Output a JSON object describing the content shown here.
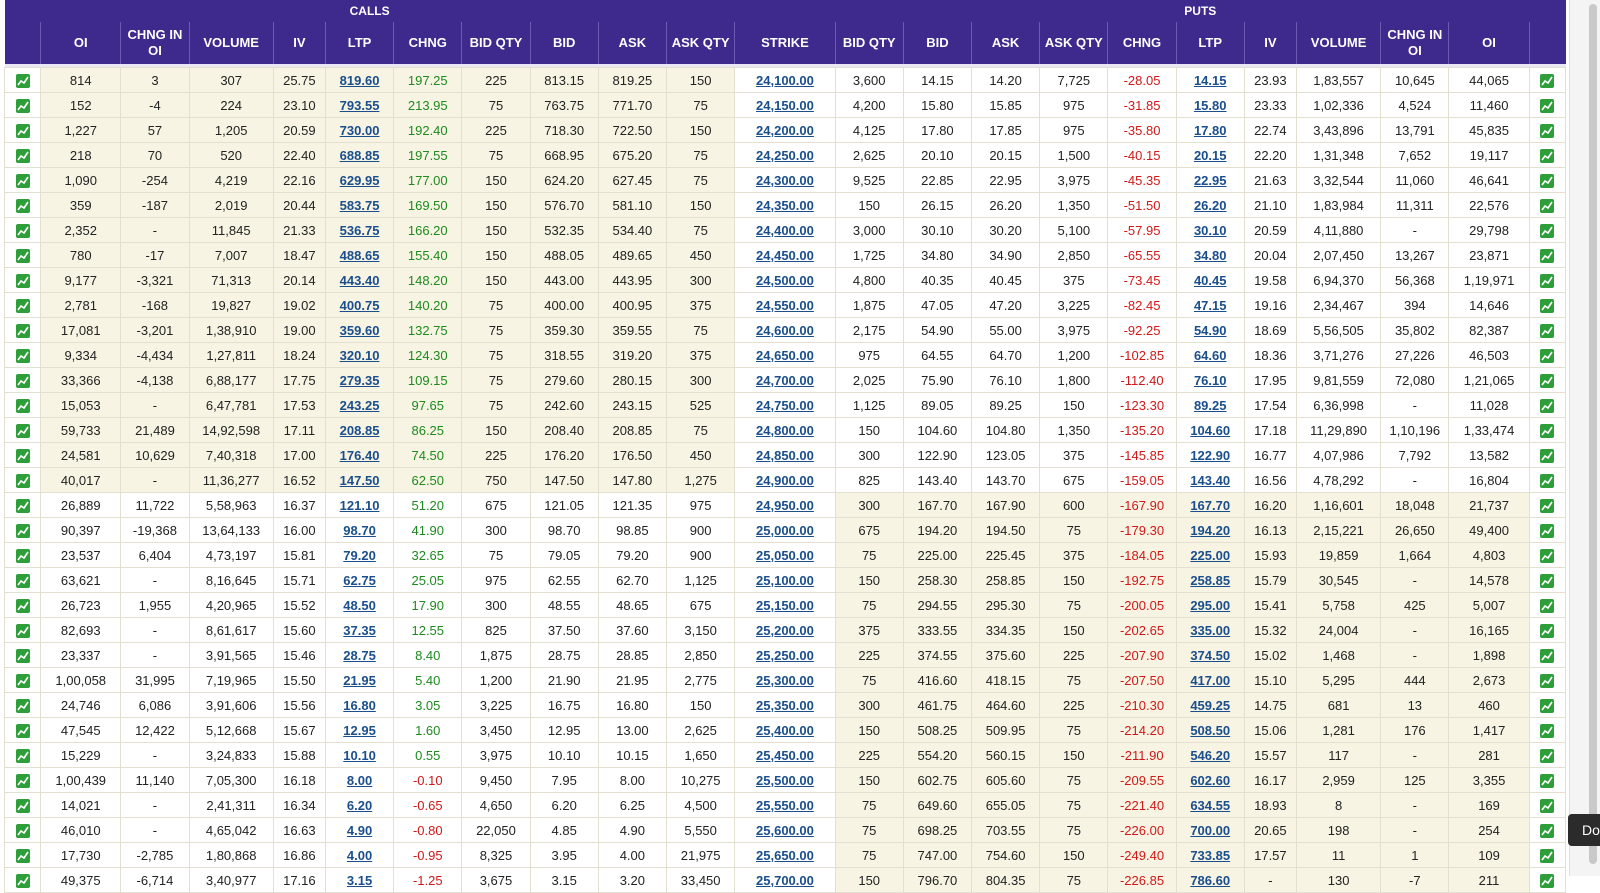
{
  "groups": {
    "calls": "CALLS",
    "puts": "PUTS"
  },
  "columns": {
    "call": [
      "OI",
      "CHNG IN OI",
      "VOLUME",
      "IV",
      "LTP",
      "CHNG",
      "BID QTY",
      "BID",
      "ASK",
      "ASK QTY"
    ],
    "strike": "STRIKE",
    "put": [
      "BID QTY",
      "BID",
      "ASK",
      "ASK QTY",
      "CHNG",
      "LTP",
      "IV",
      "VOLUME",
      "CHNG IN OI",
      "OI"
    ]
  },
  "corner_tab": "Do",
  "rows": [
    {
      "c": [
        "814",
        "3",
        "307",
        "25.75",
        "819.60",
        "197.25",
        "225",
        "813.15",
        "819.25",
        "150"
      ],
      "s": "24,100.00",
      "p": [
        "3,600",
        "14.15",
        "14.20",
        "7,725",
        "-28.05",
        "14.15",
        "23.93",
        "1,83,557",
        "10,645",
        "44,065"
      ]
    },
    {
      "c": [
        "152",
        "-4",
        "224",
        "23.10",
        "793.55",
        "213.95",
        "75",
        "763.75",
        "771.70",
        "75"
      ],
      "s": "24,150.00",
      "p": [
        "4,200",
        "15.80",
        "15.85",
        "975",
        "-31.85",
        "15.80",
        "23.33",
        "1,02,336",
        "4,524",
        "11,460"
      ]
    },
    {
      "c": [
        "1,227",
        "57",
        "1,205",
        "20.59",
        "730.00",
        "192.40",
        "225",
        "718.30",
        "722.50",
        "150"
      ],
      "s": "24,200.00",
      "p": [
        "4,125",
        "17.80",
        "17.85",
        "975",
        "-35.80",
        "17.80",
        "22.74",
        "3,43,896",
        "13,791",
        "45,835"
      ]
    },
    {
      "c": [
        "218",
        "70",
        "520",
        "22.40",
        "688.85",
        "197.55",
        "75",
        "668.95",
        "675.20",
        "75"
      ],
      "s": "24,250.00",
      "p": [
        "2,625",
        "20.10",
        "20.15",
        "1,500",
        "-40.15",
        "20.15",
        "22.20",
        "1,31,348",
        "7,652",
        "19,117"
      ]
    },
    {
      "c": [
        "1,090",
        "-254",
        "4,219",
        "22.16",
        "629.95",
        "177.00",
        "150",
        "624.20",
        "627.45",
        "75"
      ],
      "s": "24,300.00",
      "p": [
        "9,525",
        "22.85",
        "22.95",
        "3,975",
        "-45.35",
        "22.95",
        "21.63",
        "3,32,544",
        "11,060",
        "46,641"
      ]
    },
    {
      "c": [
        "359",
        "-187",
        "2,019",
        "20.44",
        "583.75",
        "169.50",
        "150",
        "576.70",
        "581.10",
        "150"
      ],
      "s": "24,350.00",
      "p": [
        "150",
        "26.15",
        "26.20",
        "1,350",
        "-51.50",
        "26.20",
        "21.10",
        "1,83,984",
        "11,311",
        "22,576"
      ]
    },
    {
      "c": [
        "2,352",
        "-",
        "11,845",
        "21.33",
        "536.75",
        "166.20",
        "150",
        "532.35",
        "534.40",
        "75"
      ],
      "s": "24,400.00",
      "p": [
        "3,000",
        "30.10",
        "30.20",
        "5,100",
        "-57.95",
        "30.10",
        "20.59",
        "4,11,880",
        "-",
        "29,798"
      ]
    },
    {
      "c": [
        "780",
        "-17",
        "7,007",
        "18.47",
        "488.65",
        "155.40",
        "150",
        "488.05",
        "489.65",
        "450"
      ],
      "s": "24,450.00",
      "p": [
        "1,725",
        "34.80",
        "34.90",
        "2,850",
        "-65.55",
        "34.80",
        "20.04",
        "2,07,450",
        "13,267",
        "23,871"
      ]
    },
    {
      "c": [
        "9,177",
        "-3,321",
        "71,313",
        "20.14",
        "443.40",
        "148.20",
        "150",
        "443.00",
        "443.95",
        "300"
      ],
      "s": "24,500.00",
      "p": [
        "4,800",
        "40.35",
        "40.45",
        "375",
        "-73.45",
        "40.45",
        "19.58",
        "6,94,370",
        "56,368",
        "1,19,971"
      ]
    },
    {
      "c": [
        "2,781",
        "-168",
        "19,827",
        "19.02",
        "400.75",
        "140.20",
        "75",
        "400.00",
        "400.95",
        "375"
      ],
      "s": "24,550.00",
      "p": [
        "1,875",
        "47.05",
        "47.20",
        "3,225",
        "-82.45",
        "47.15",
        "19.16",
        "2,34,467",
        "394",
        "14,646"
      ]
    },
    {
      "c": [
        "17,081",
        "-3,201",
        "1,38,910",
        "19.00",
        "359.60",
        "132.75",
        "75",
        "359.30",
        "359.55",
        "75"
      ],
      "s": "24,600.00",
      "p": [
        "2,175",
        "54.90",
        "55.00",
        "3,975",
        "-92.25",
        "54.90",
        "18.69",
        "5,56,505",
        "35,802",
        "82,387"
      ]
    },
    {
      "c": [
        "9,334",
        "-4,434",
        "1,27,811",
        "18.24",
        "320.10",
        "124.30",
        "75",
        "318.55",
        "319.20",
        "375"
      ],
      "s": "24,650.00",
      "p": [
        "975",
        "64.55",
        "64.70",
        "1,200",
        "-102.85",
        "64.60",
        "18.36",
        "3,71,276",
        "27,226",
        "46,503"
      ]
    },
    {
      "c": [
        "33,366",
        "-4,138",
        "6,88,177",
        "17.75",
        "279.35",
        "109.15",
        "75",
        "279.60",
        "280.15",
        "300"
      ],
      "s": "24,700.00",
      "p": [
        "2,025",
        "75.90",
        "76.10",
        "1,800",
        "-112.40",
        "76.10",
        "17.95",
        "9,81,559",
        "72,080",
        "1,21,065"
      ]
    },
    {
      "c": [
        "15,053",
        "-",
        "6,47,781",
        "17.53",
        "243.25",
        "97.65",
        "75",
        "242.60",
        "243.15",
        "525"
      ],
      "s": "24,750.00",
      "p": [
        "1,125",
        "89.05",
        "89.25",
        "150",
        "-123.30",
        "89.25",
        "17.54",
        "6,36,998",
        "-",
        "11,028"
      ]
    },
    {
      "c": [
        "59,733",
        "21,489",
        "14,92,598",
        "17.11",
        "208.85",
        "86.25",
        "150",
        "208.40",
        "208.85",
        "75"
      ],
      "s": "24,800.00",
      "p": [
        "150",
        "104.60",
        "104.80",
        "1,350",
        "-135.20",
        "104.60",
        "17.18",
        "11,29,890",
        "1,10,196",
        "1,33,474"
      ]
    },
    {
      "c": [
        "24,581",
        "10,629",
        "7,40,318",
        "17.00",
        "176.40",
        "74.50",
        "225",
        "176.20",
        "176.50",
        "450"
      ],
      "s": "24,850.00",
      "p": [
        "300",
        "122.90",
        "123.05",
        "375",
        "-145.85",
        "122.90",
        "16.77",
        "4,07,986",
        "7,792",
        "13,582"
      ]
    },
    {
      "c": [
        "40,017",
        "-",
        "11,36,277",
        "16.52",
        "147.50",
        "62.50",
        "750",
        "147.50",
        "147.80",
        "1,275"
      ],
      "s": "24,900.00",
      "p": [
        "825",
        "143.40",
        "143.70",
        "675",
        "-159.05",
        "143.40",
        "16.56",
        "4,78,292",
        "-",
        "16,804"
      ]
    },
    {
      "c": [
        "26,889",
        "11,722",
        "5,58,963",
        "16.37",
        "121.10",
        "51.20",
        "675",
        "121.05",
        "121.35",
        "975"
      ],
      "s": "24,950.00",
      "p": [
        "300",
        "167.70",
        "167.90",
        "600",
        "-167.90",
        "167.70",
        "16.20",
        "1,16,601",
        "18,048",
        "21,737"
      ]
    },
    {
      "c": [
        "90,397",
        "-19,368",
        "13,64,133",
        "16.00",
        "98.70",
        "41.90",
        "300",
        "98.70",
        "98.85",
        "900"
      ],
      "s": "25,000.00",
      "p": [
        "675",
        "194.20",
        "194.50",
        "75",
        "-179.30",
        "194.20",
        "16.13",
        "2,15,221",
        "26,650",
        "49,400"
      ]
    },
    {
      "c": [
        "23,537",
        "6,404",
        "4,73,197",
        "15.81",
        "79.20",
        "32.65",
        "75",
        "79.05",
        "79.20",
        "900"
      ],
      "s": "25,050.00",
      "p": [
        "75",
        "225.00",
        "225.45",
        "375",
        "-184.05",
        "225.00",
        "15.93",
        "19,859",
        "1,664",
        "4,803"
      ]
    },
    {
      "c": [
        "63,621",
        "-",
        "8,16,645",
        "15.71",
        "62.75",
        "25.05",
        "975",
        "62.55",
        "62.70",
        "1,125"
      ],
      "s": "25,100.00",
      "p": [
        "150",
        "258.30",
        "258.85",
        "150",
        "-192.75",
        "258.85",
        "15.79",
        "30,545",
        "-",
        "14,578"
      ]
    },
    {
      "c": [
        "26,723",
        "1,955",
        "4,20,965",
        "15.52",
        "48.50",
        "17.90",
        "300",
        "48.55",
        "48.65",
        "675"
      ],
      "s": "25,150.00",
      "p": [
        "75",
        "294.55",
        "295.30",
        "75",
        "-200.05",
        "295.00",
        "15.41",
        "5,758",
        "425",
        "5,007"
      ]
    },
    {
      "c": [
        "82,693",
        "-",
        "8,61,617",
        "15.60",
        "37.35",
        "12.55",
        "825",
        "37.50",
        "37.60",
        "3,150"
      ],
      "s": "25,200.00",
      "p": [
        "375",
        "333.55",
        "334.35",
        "150",
        "-202.65",
        "335.00",
        "15.32",
        "24,004",
        "-",
        "16,165"
      ]
    },
    {
      "c": [
        "23,337",
        "-",
        "3,91,565",
        "15.46",
        "28.75",
        "8.40",
        "1,875",
        "28.75",
        "28.85",
        "2,850"
      ],
      "s": "25,250.00",
      "p": [
        "225",
        "374.55",
        "375.60",
        "225",
        "-207.90",
        "374.50",
        "15.02",
        "1,468",
        "-",
        "1,898"
      ]
    },
    {
      "c": [
        "1,00,058",
        "31,995",
        "7,19,965",
        "15.50",
        "21.95",
        "5.40",
        "1,200",
        "21.90",
        "21.95",
        "2,775"
      ],
      "s": "25,300.00",
      "p": [
        "75",
        "416.60",
        "418.15",
        "75",
        "-207.50",
        "417.00",
        "15.10",
        "5,295",
        "444",
        "2,673"
      ]
    },
    {
      "c": [
        "24,746",
        "6,086",
        "3,91,606",
        "15.56",
        "16.80",
        "3.05",
        "3,225",
        "16.75",
        "16.80",
        "150"
      ],
      "s": "25,350.00",
      "p": [
        "300",
        "461.75",
        "464.60",
        "225",
        "-210.30",
        "459.25",
        "14.75",
        "681",
        "13",
        "460"
      ]
    },
    {
      "c": [
        "47,545",
        "12,422",
        "5,12,668",
        "15.67",
        "12.95",
        "1.60",
        "3,450",
        "12.95",
        "13.00",
        "2,625"
      ],
      "s": "25,400.00",
      "p": [
        "150",
        "508.25",
        "509.95",
        "75",
        "-214.20",
        "508.50",
        "15.06",
        "1,281",
        "176",
        "1,417"
      ]
    },
    {
      "c": [
        "15,229",
        "-",
        "3,24,833",
        "15.88",
        "10.10",
        "0.55",
        "3,975",
        "10.10",
        "10.15",
        "1,650"
      ],
      "s": "25,450.00",
      "p": [
        "225",
        "554.20",
        "560.15",
        "150",
        "-211.90",
        "546.20",
        "15.57",
        "117",
        "-",
        "281"
      ]
    },
    {
      "c": [
        "1,00,439",
        "11,140",
        "7,05,300",
        "16.18",
        "8.00",
        "-0.10",
        "9,450",
        "7.95",
        "8.00",
        "10,275"
      ],
      "s": "25,500.00",
      "p": [
        "150",
        "602.75",
        "605.60",
        "75",
        "-209.55",
        "602.60",
        "16.17",
        "2,959",
        "125",
        "3,355"
      ]
    },
    {
      "c": [
        "14,021",
        "-",
        "2,41,311",
        "16.34",
        "6.20",
        "-0.65",
        "4,650",
        "6.20",
        "6.25",
        "4,500"
      ],
      "s": "25,550.00",
      "p": [
        "75",
        "649.60",
        "655.05",
        "75",
        "-221.40",
        "634.55",
        "18.93",
        "8",
        "-",
        "169"
      ]
    },
    {
      "c": [
        "46,010",
        "-",
        "4,65,042",
        "16.63",
        "4.90",
        "-0.80",
        "22,050",
        "4.85",
        "4.90",
        "5,550"
      ],
      "s": "25,600.00",
      "p": [
        "75",
        "698.25",
        "703.55",
        "75",
        "-226.00",
        "700.00",
        "20.65",
        "198",
        "-",
        "254"
      ]
    },
    {
      "c": [
        "17,730",
        "-2,785",
        "1,80,868",
        "16.86",
        "4.00",
        "-0.95",
        "8,325",
        "3.95",
        "4.00",
        "21,975"
      ],
      "s": "25,650.00",
      "p": [
        "75",
        "747.00",
        "754.60",
        "150",
        "-249.40",
        "733.85",
        "17.57",
        "11",
        "1",
        "109"
      ]
    },
    {
      "c": [
        "49,375",
        "-6,714",
        "3,40,977",
        "17.16",
        "3.15",
        "-1.25",
        "3,675",
        "3.15",
        "3.20",
        "33,450"
      ],
      "s": "25,700.00",
      "p": [
        "150",
        "796.70",
        "804.35",
        "75",
        "-226.85",
        "786.60",
        "-",
        "130",
        "-7",
        "211"
      ]
    }
  ]
}
